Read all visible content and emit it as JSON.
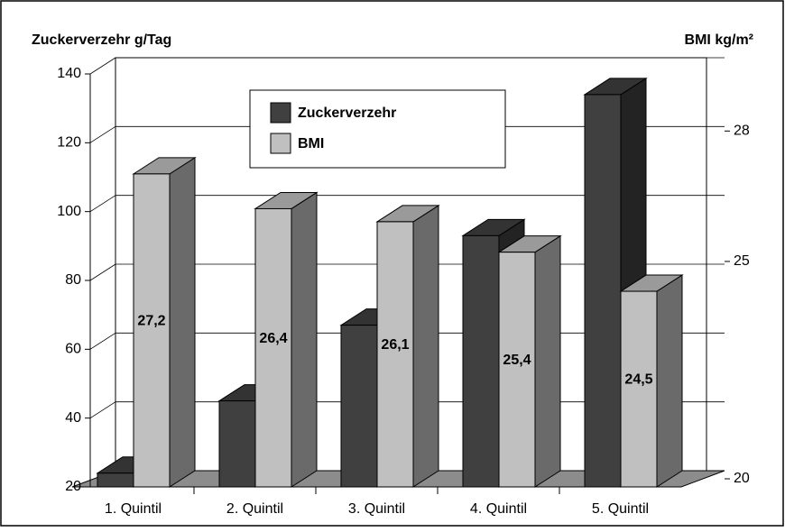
{
  "chart_data": {
    "type": "bar3d",
    "y_label": "Zuckerverzehr g/Tag",
    "y2_label": "BMI kg/m²",
    "categories": [
      "1. Quintil",
      "2. Quintil",
      "3. Quintil",
      "4. Quintil",
      "5. Quintil"
    ],
    "series": [
      {
        "name": "Zuckerverzehr",
        "color": "#404040",
        "values": [
          24,
          45,
          67,
          93,
          134
        ]
      },
      {
        "name": "BMI",
        "color": "#c0c0c0",
        "axis": "y2",
        "values": [
          27.2,
          26.4,
          26.1,
          25.4,
          24.5
        ],
        "value_labels": [
          "27,2",
          "26,4",
          "26,1",
          "25,4",
          "24,5"
        ]
      }
    ],
    "ylim": [
      20,
      140
    ],
    "yticks": [
      20,
      40,
      60,
      80,
      100,
      120,
      140
    ],
    "y2lim": [
      20,
      29.5
    ],
    "y2ticks": [
      20,
      25,
      28
    ],
    "grid": true,
    "legend": "top"
  }
}
